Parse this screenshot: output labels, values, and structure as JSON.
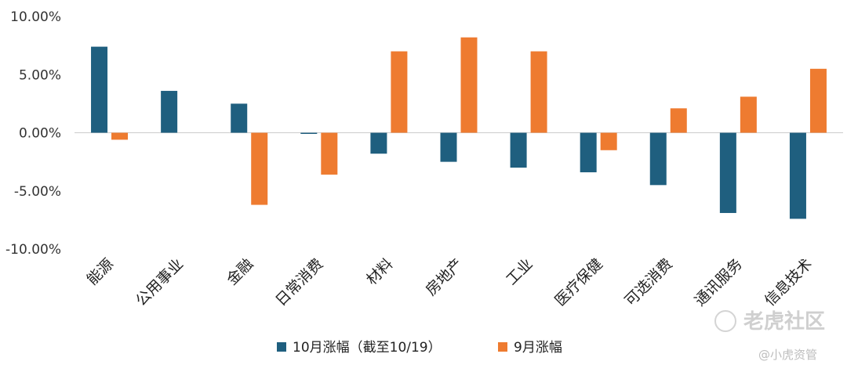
{
  "chart_data": {
    "type": "bar",
    "categories": [
      "能源",
      "公用事业",
      "金融",
      "日常消费",
      "材料",
      "房地产",
      "工业",
      "医疗保健",
      "可选消费",
      "通讯服务",
      "信息技术"
    ],
    "series": [
      {
        "name": "10月涨幅（截至10/19）",
        "values": [
          7.4,
          3.6,
          2.5,
          -0.1,
          -1.8,
          -2.5,
          -3.0,
          -3.4,
          -4.5,
          -6.9,
          -7.4
        ],
        "color": "#1f5f7f"
      },
      {
        "name": "9月涨幅",
        "values": [
          -0.6,
          0.0,
          -6.2,
          -3.6,
          7.0,
          8.2,
          7.0,
          -1.5,
          2.1,
          3.1,
          5.5
        ],
        "color": "#ee7b30"
      }
    ],
    "ylim": [
      -10,
      10
    ],
    "yticks": [
      10,
      5,
      0,
      -5,
      -10
    ],
    "ytick_labels": [
      "10.00%",
      "5.00%",
      "0.00%",
      "-5.00%",
      "-10.00%"
    ],
    "title": "",
    "xlabel": "",
    "ylabel": "",
    "grid": false,
    "legend_position": "bottom"
  },
  "watermark": {
    "brand": "老虎社区",
    "handle": "@小虎资管"
  }
}
